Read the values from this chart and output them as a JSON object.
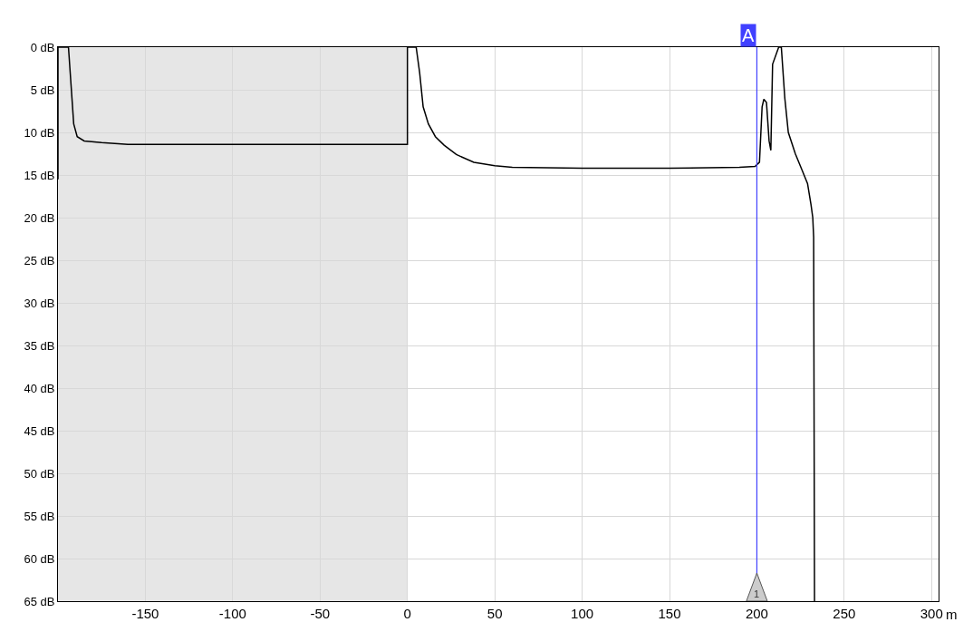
{
  "chart_data": {
    "type": "line",
    "xlabel": "m",
    "series": [
      {
        "color": "#000000",
        "x": [
          -200,
          -200,
          -194,
          -193,
          -192,
          -191,
          -189,
          -185,
          -175,
          -160,
          -100,
          -50,
          0,
          0,
          5,
          7,
          9,
          12,
          16,
          21,
          28,
          38,
          50,
          60,
          100,
          150,
          190,
          199,
          201.5,
          203,
          204,
          205.5,
          207,
          208,
          209,
          212.5,
          214,
          216,
          218,
          222,
          226,
          229,
          231,
          232,
          232.5,
          233
        ],
        "values": [
          15.5,
          0,
          0,
          3,
          6,
          9,
          10.5,
          11,
          11.2,
          11.4,
          11.4,
          11.4,
          11.4,
          0,
          0,
          3,
          7,
          9,
          10.5,
          11.5,
          12.6,
          13.5,
          13.9,
          14.1,
          14.2,
          14.2,
          14.1,
          14,
          13.5,
          7,
          6.1,
          6.5,
          11,
          12.1,
          2,
          0,
          0,
          6,
          10,
          12.5,
          14.5,
          16,
          18.5,
          20,
          22.3,
          65
        ]
      }
    ],
    "xlim": [
      -200,
      304
    ],
    "xticks": [
      -150,
      -100,
      -50,
      0,
      50,
      100,
      150,
      200,
      250,
      300
    ],
    "ylim": [
      65,
      0
    ],
    "yticks": [
      {
        "value": 0,
        "label": "0 dB"
      },
      {
        "value": 5,
        "label": "5 dB"
      },
      {
        "value": 10,
        "label": "10 dB"
      },
      {
        "value": 15,
        "label": "15 dB"
      },
      {
        "value": 20,
        "label": "20 dB"
      },
      {
        "value": 25,
        "label": "25 dB"
      },
      {
        "value": 30,
        "label": "30 dB"
      },
      {
        "value": 35,
        "label": "35 dB"
      },
      {
        "value": 40,
        "label": "40 dB"
      },
      {
        "value": 45,
        "label": "45 dB"
      },
      {
        "value": 50,
        "label": "50 dB"
      },
      {
        "value": 55,
        "label": "55 dB"
      },
      {
        "value": 60,
        "label": "60 dB"
      },
      {
        "value": 65,
        "label": "65 dB"
      }
    ],
    "bands": [
      {
        "axis": "x",
        "from": -200,
        "to": 0,
        "color": "#e6e6e6"
      }
    ],
    "ref_lines": [
      {
        "axis": "x",
        "value": 200,
        "label": "A",
        "color": "#4040ff"
      }
    ],
    "annotations": [
      {
        "text": "1",
        "x": 200,
        "y": 65
      }
    ],
    "grid": true,
    "marker": "none",
    "line_style": "solid"
  }
}
